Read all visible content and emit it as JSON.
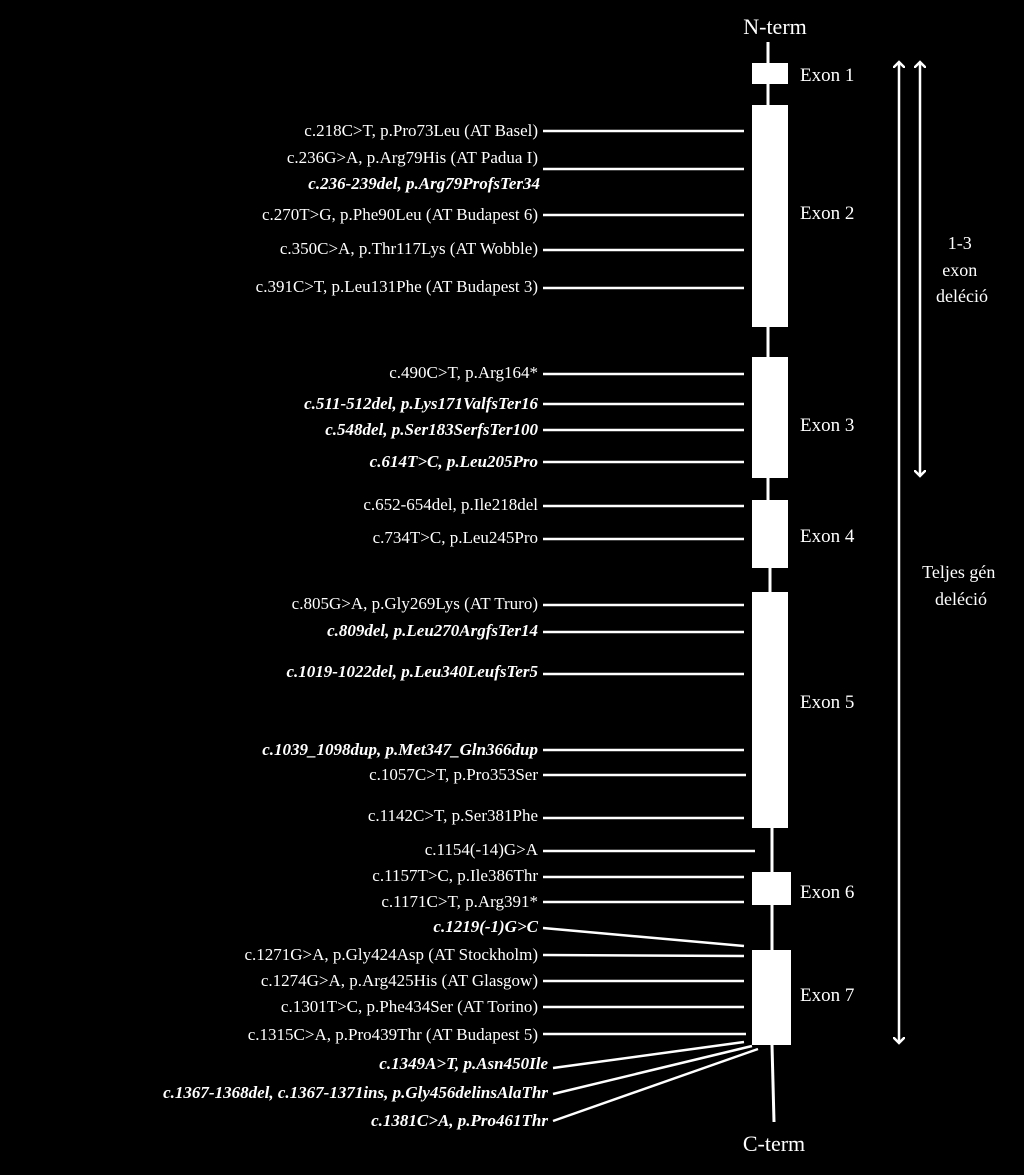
{
  "diagram": {
    "n_term": "N-term",
    "c_term": "C-term",
    "exons": [
      {
        "label": "Exon 1"
      },
      {
        "label": "Exon 2"
      },
      {
        "label": "Exon 3"
      },
      {
        "label": "Exon 4"
      },
      {
        "label": "Exon 5"
      },
      {
        "label": "Exon 6"
      },
      {
        "label": "Exon 7"
      }
    ],
    "mutations": [
      {
        "text": "c.218C>T, p.Pro73Leu (AT Basel)",
        "emphasis": false
      },
      {
        "text": "c.236G>A, p.Arg79His (AT Padua I)",
        "emphasis": false
      },
      {
        "text": "c.236-239del, p.Arg79ProfsTer34",
        "emphasis": true
      },
      {
        "text": "c.270T>G, p.Phe90Leu (AT Budapest 6)",
        "emphasis": false
      },
      {
        "text": "c.350C>A, p.Thr117Lys (AT Wobble)",
        "emphasis": false
      },
      {
        "text": "c.391C>T, p.Leu131Phe (AT Budapest 3)",
        "emphasis": false
      },
      {
        "text": "c.490C>T, p.Arg164*",
        "emphasis": false
      },
      {
        "text": "c.511-512del, p.Lys171ValfsTer16",
        "emphasis": true
      },
      {
        "text": "c.548del, p.Ser183SerfsTer100",
        "emphasis": true
      },
      {
        "text": "c.614T>C, p.Leu205Pro",
        "emphasis": true
      },
      {
        "text": "c.652-654del, p.Ile218del",
        "emphasis": false
      },
      {
        "text": "c.734T>C, p.Leu245Pro",
        "emphasis": false
      },
      {
        "text": "c.805G>A, p.Gly269Lys (AT Truro)",
        "emphasis": false
      },
      {
        "text": "c.809del, p.Leu270ArgfsTer14",
        "emphasis": true
      },
      {
        "text": "c.1019-1022del, p.Leu340LeufsTer5",
        "emphasis": true
      },
      {
        "text": "c.1039_1098dup, p.Met347_Gln366dup",
        "emphasis": true
      },
      {
        "text": "c.1057C>T, p.Pro353Ser",
        "emphasis": false
      },
      {
        "text": "c.1142C>T, p.Ser381Phe",
        "emphasis": false
      },
      {
        "text": "c.1154(-14)G>A",
        "emphasis": false
      },
      {
        "text": "c.1157T>C, p.Ile386Thr",
        "emphasis": false
      },
      {
        "text": "c.1171C>T, p.Arg391*",
        "emphasis": false
      },
      {
        "text": "c.1219(-1)G>C",
        "emphasis": true
      },
      {
        "text": "c.1271G>A, p.Gly424Asp (AT Stockholm)",
        "emphasis": false
      },
      {
        "text": "c.1274G>A, p.Arg425His (AT Glasgow)",
        "emphasis": false
      },
      {
        "text": "c.1301T>C, p.Phe434Ser (AT Torino)",
        "emphasis": false
      },
      {
        "text": "c.1315C>A, p.Pro439Thr (AT Budapest 5)",
        "emphasis": false
      },
      {
        "text": "c.1349A>T, p.Asn450Ile",
        "emphasis": true
      },
      {
        "text": "c.1367-1368del, c.1367-1371ins, p.Gly456delinsAlaThr",
        "emphasis": true
      },
      {
        "text": "c.1381C>A, p.Pro461Thr",
        "emphasis": true
      }
    ],
    "deletions": [
      {
        "lines": [
          "1-3",
          "exon",
          "deléció"
        ]
      },
      {
        "lines": [
          "Teljes gén",
          "deléció"
        ]
      }
    ]
  }
}
